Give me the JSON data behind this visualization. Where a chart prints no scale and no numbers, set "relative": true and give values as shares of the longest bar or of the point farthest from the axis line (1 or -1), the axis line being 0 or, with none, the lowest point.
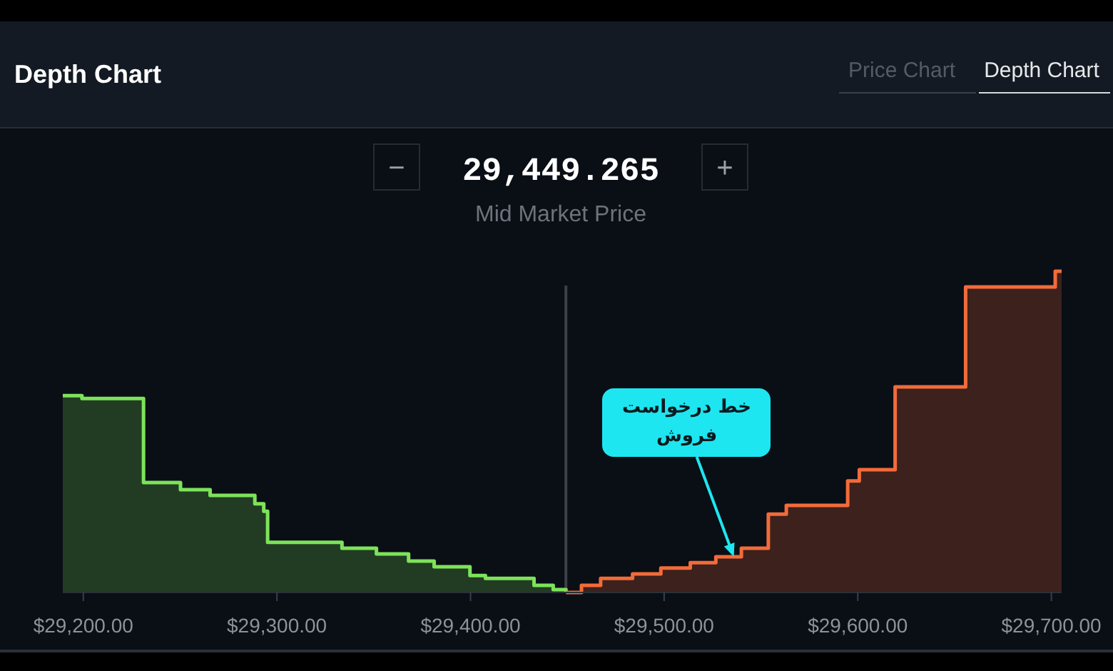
{
  "chart_data": {
    "type": "step",
    "title": "Depth Chart",
    "relative": true,
    "tick_labels": "x",
    "xlim": [
      29189.4,
      29705.3
    ],
    "xticks": [
      {
        "value": 29200,
        "label": "$29,200.00"
      },
      {
        "value": 29300,
        "label": "$29,300.00"
      },
      {
        "value": 29400,
        "label": "$29,400.00"
      },
      {
        "value": 29500,
        "label": "$29,500.00"
      },
      {
        "value": 29600,
        "label": "$29,600.00"
      },
      {
        "value": 29700,
        "label": "$29,700.00"
      }
    ],
    "series": [
      {
        "color": "#7de35a",
        "x": [
          29189.4,
          29199.3,
          29231.1,
          29250.2,
          29265.5,
          29288.6,
          29293.2,
          29295.2,
          29333.6,
          29351.4,
          29368.0,
          29381.2,
          29399.7,
          29407.7,
          29432.8,
          29442.7,
          29449.3
        ],
        "values": [
          0.613,
          0.604,
          0.342,
          0.32,
          0.302,
          0.276,
          0.253,
          0.156,
          0.138,
          0.12,
          0.098,
          0.08,
          0.053,
          0.044,
          0.022,
          0.009,
          0
        ]
      },
      {
        "color": "#f26b3a",
        "x": [
          29449.3,
          29457.3,
          29467.2,
          29483.7,
          29498.3,
          29513.5,
          29526.7,
          29539.9,
          29553.8,
          29563.1,
          29594.8,
          29600.8,
          29619.3,
          29655.7,
          29702.0,
          29705.3
        ],
        "values": [
          0,
          0.022,
          0.044,
          0.058,
          0.076,
          0.093,
          0.111,
          0.138,
          0.244,
          0.271,
          0.347,
          0.382,
          0.64,
          0.951,
          1,
          1
        ]
      }
    ],
    "ref_lines": [
      {
        "axis": "x",
        "value": 29449.265,
        "color": "#3c4149"
      }
    ],
    "annotations": [
      "29,449.265",
      "Mid Market Price",
      "−",
      "+",
      "Price Chart",
      "Depth Chart",
      {
        "text": "خط درخواست فروش",
        "x": 29536,
        "y": 0.111
      }
    ]
  }
}
